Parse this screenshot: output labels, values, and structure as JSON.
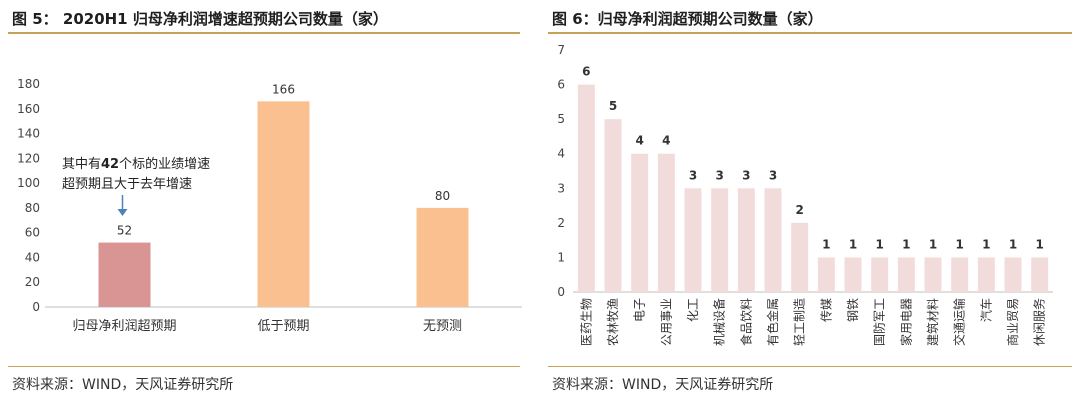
{
  "figures": [
    {
      "title": "图 5：  2020H1 归母净利润增速超预期公司数量（家）",
      "source": "资料来源：WIND，天风证券研究所"
    },
    {
      "title": "图 6：归母净利润超预期公司数量（家）",
      "source": "资料来源：WIND，天风证券研究所"
    }
  ],
  "chart_data": [
    {
      "type": "bar",
      "categories": [
        "归母净利润超预期",
        "低于预期",
        "无预测"
      ],
      "values": [
        52,
        166,
        80
      ],
      "ylim": [
        0,
        180
      ],
      "yticks": [
        0,
        20,
        40,
        60,
        80,
        100,
        120,
        140,
        160,
        180
      ],
      "colors": [
        "#d99594",
        "#fac090",
        "#fac090"
      ],
      "grid": false,
      "annotation": {
        "line1_pre": "其中有",
        "line1_num": "42",
        "line1_post": "个标的业绩增速",
        "line2": "超预期且大于去年增速",
        "arrow_color": "#4f81bd"
      }
    },
    {
      "type": "bar",
      "categories": [
        "医药生物",
        "农林牧渔",
        "电子",
        "公用事业",
        "化工",
        "机械设备",
        "食品饮料",
        "有色金属",
        "轻工制造",
        "传媒",
        "钢铁",
        "国防军工",
        "家用电器",
        "建筑材料",
        "交通运输",
        "汽车",
        "商业贸易",
        "休闲服务"
      ],
      "values": [
        6,
        5,
        4,
        4,
        3,
        3,
        3,
        3,
        2,
        1,
        1,
        1,
        1,
        1,
        1,
        1,
        1,
        1
      ],
      "ylim": [
        0,
        7
      ],
      "yticks": [
        0,
        1,
        2,
        3,
        4,
        5,
        6,
        7
      ],
      "colors": [
        "#f2dcdb"
      ],
      "grid": false
    }
  ]
}
